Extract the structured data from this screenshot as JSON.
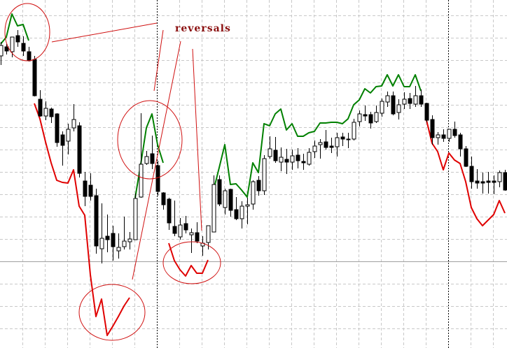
{
  "chart_data": {
    "type": "candlestick",
    "title": "",
    "xlabel": "",
    "ylabel": "",
    "grid": true,
    "colors": {
      "bull_body": "#ffffff",
      "bear_body": "#000000",
      "up_line": "#008000",
      "down_line": "#e00000",
      "annotation": "#d01010",
      "grid": "#c8c8c8"
    },
    "candles_ohlc": [
      [
        420,
        440,
        407,
        435
      ],
      [
        433,
        437,
        422,
        427
      ],
      [
        426,
        447,
        418,
        447
      ],
      [
        449,
        457,
        433,
        440
      ],
      [
        438,
        448,
        420,
        427
      ],
      [
        426,
        433,
        412,
        413
      ],
      [
        415,
        420,
        362,
        363
      ],
      [
        358,
        371,
        333,
        334
      ],
      [
        334,
        355,
        328,
        345
      ],
      [
        344,
        346,
        324,
        333
      ],
      [
        337,
        338,
        290,
        296
      ],
      [
        307,
        312,
        263,
        292
      ],
      [
        298,
        323,
        279,
        315
      ],
      [
        317,
        351,
        312,
        329
      ],
      [
        320,
        325,
        246,
        252
      ],
      [
        241,
        254,
        205,
        219
      ],
      [
        235,
        252,
        213,
        219
      ],
      [
        220,
        230,
        137,
        148
      ],
      [
        144,
        209,
        123,
        159
      ],
      [
        162,
        193,
        139,
        157
      ],
      [
        166,
        177,
        127,
        147
      ],
      [
        141,
        166,
        130,
        146
      ],
      [
        147,
        190,
        143,
        155
      ],
      [
        154,
        168,
        143,
        158
      ],
      [
        157,
        223,
        157,
        216
      ],
      [
        218,
        338,
        217,
        265
      ],
      [
        266,
        284,
        264,
        276
      ],
      [
        280,
        306,
        258,
        266
      ],
      [
        263,
        270,
        220,
        226
      ],
      [
        224,
        225,
        200,
        207
      ],
      [
        215,
        217,
        171,
        181
      ],
      [
        176,
        213,
        162,
        166
      ],
      [
        161,
        188,
        157,
        178
      ],
      [
        180,
        191,
        166,
        171
      ],
      [
        164,
        173,
        138,
        167
      ],
      [
        167,
        182,
        152,
        155
      ],
      [
        148,
        162,
        134,
        152
      ],
      [
        153,
        177,
        143,
        177
      ],
      [
        168,
        249,
        168,
        236
      ],
      [
        243,
        249,
        205,
        208
      ],
      [
        203,
        230,
        193,
        227
      ],
      [
        229,
        230,
        190,
        199
      ],
      [
        200,
        218,
        185,
        187
      ],
      [
        187,
        212,
        173,
        205
      ],
      [
        205,
        217,
        179,
        207
      ],
      [
        208,
        242,
        200,
        240
      ],
      [
        242,
        248,
        220,
        227
      ],
      [
        227,
        278,
        221,
        273
      ],
      [
        276,
        305,
        273,
        287
      ],
      [
        285,
        304,
        267,
        270
      ],
      [
        268,
        289,
        255,
        275
      ],
      [
        272,
        287,
        251,
        268
      ],
      [
        268,
        286,
        257,
        277
      ],
      [
        278,
        288,
        259,
        270
      ],
      [
        269,
        280,
        257,
        267
      ],
      [
        265,
        288,
        263,
        282
      ],
      [
        283,
        299,
        274,
        291
      ],
      [
        293,
        301,
        273,
        296
      ],
      [
        297,
        314,
        286,
        289
      ],
      [
        291,
        303,
        281,
        289
      ],
      [
        290,
        310,
        276,
        303
      ],
      [
        304,
        310,
        291,
        301
      ],
      [
        301,
        310,
        288,
        300
      ],
      [
        301,
        330,
        299,
        325
      ],
      [
        326,
        342,
        319,
        337
      ],
      [
        336,
        349,
        327,
        334
      ],
      [
        336,
        340,
        316,
        324
      ],
      [
        326,
        349,
        324,
        339
      ],
      [
        338,
        359,
        333,
        355
      ],
      [
        354,
        369,
        347,
        363
      ],
      [
        363,
        369,
        335,
        337
      ],
      [
        339,
        358,
        329,
        350
      ],
      [
        351,
        368,
        344,
        358
      ],
      [
        359,
        367,
        344,
        352
      ],
      [
        351,
        377,
        347,
        363
      ],
      [
        363,
        372,
        347,
        351
      ],
      [
        352,
        353,
        325,
        328
      ],
      [
        329,
        335,
        293,
        303
      ],
      [
        303,
        311,
        293,
        307
      ],
      [
        307,
        315,
        297,
        302
      ],
      [
        302,
        315,
        297,
        315
      ],
      [
        315,
        326,
        303,
        306
      ],
      [
        307,
        310,
        276,
        287
      ],
      [
        287,
        291,
        261,
        262
      ],
      [
        262,
        276,
        230,
        240
      ],
      [
        241,
        258,
        230,
        238
      ],
      [
        240,
        253,
        223,
        238
      ],
      [
        241,
        254,
        223,
        239
      ],
      [
        241,
        249,
        222,
        239
      ],
      [
        240,
        256,
        232,
        253
      ],
      [
        253,
        257,
        227,
        228
      ]
    ],
    "trend_segments": [
      {
        "direction": "up",
        "points": [
          [
            0,
            437
          ],
          [
            1,
            447
          ],
          [
            2,
            480
          ],
          [
            3,
            463
          ],
          [
            4,
            465
          ],
          [
            5,
            442
          ]
        ]
      },
      {
        "direction": "down",
        "points": [
          [
            6,
            352
          ],
          [
            7,
            330
          ],
          [
            8,
            297
          ],
          [
            9,
            267
          ],
          [
            10,
            242
          ],
          [
            11,
            239
          ],
          [
            12,
            238
          ],
          [
            13,
            257
          ],
          [
            14,
            205
          ],
          [
            15,
            192
          ],
          [
            16,
            107
          ],
          [
            17,
            47
          ],
          [
            18,
            72
          ],
          [
            19,
            20
          ],
          [
            20,
            33
          ],
          [
            21,
            47
          ],
          [
            22,
            62
          ],
          [
            23,
            74
          ]
        ]
      },
      {
        "direction": "up",
        "points": [
          [
            24,
            217
          ],
          [
            25,
            265
          ],
          [
            26,
            317
          ],
          [
            27,
            337
          ],
          [
            28,
            293
          ],
          [
            29,
            267
          ]
        ]
      },
      {
        "direction": "down",
        "points": [
          [
            30,
            152
          ],
          [
            31,
            127
          ],
          [
            32,
            114
          ],
          [
            33,
            105
          ],
          [
            34,
            120
          ],
          [
            35,
            109
          ],
          [
            36,
            109
          ],
          [
            37,
            128
          ]
        ]
      },
      {
        "direction": "up",
        "points": [
          [
            38,
            228
          ],
          [
            39,
            260
          ],
          [
            40,
            293
          ],
          [
            41,
            236
          ],
          [
            42,
            237
          ],
          [
            43,
            228
          ],
          [
            44,
            218
          ],
          [
            45,
            267
          ],
          [
            46,
            253
          ],
          [
            47,
            323
          ],
          [
            48,
            320
          ],
          [
            49,
            337
          ],
          [
            50,
            344
          ],
          [
            51,
            314
          ],
          [
            52,
            323
          ],
          [
            53,
            305
          ],
          [
            54,
            305
          ],
          [
            55,
            310
          ],
          [
            56,
            312
          ],
          [
            57,
            324
          ],
          [
            58,
            324
          ],
          [
            59,
            325
          ],
          [
            60,
            325
          ],
          [
            61,
            323
          ],
          [
            62,
            330
          ],
          [
            63,
            350
          ],
          [
            64,
            357
          ],
          [
            65,
            373
          ],
          [
            66,
            367
          ],
          [
            67,
            376
          ],
          [
            68,
            377
          ],
          [
            69,
            393
          ],
          [
            70,
            377
          ],
          [
            71,
            393
          ],
          [
            72,
            376
          ],
          [
            73,
            376
          ],
          [
            74,
            393
          ],
          [
            75,
            370
          ]
        ]
      },
      {
        "direction": "down",
        "points": [
          [
            76,
            328
          ],
          [
            77,
            295
          ],
          [
            78,
            283
          ],
          [
            79,
            257
          ],
          [
            80,
            281
          ],
          [
            81,
            271
          ],
          [
            82,
            266
          ],
          [
            83,
            240
          ],
          [
            84,
            203
          ],
          [
            85,
            187
          ],
          [
            86,
            177
          ],
          [
            87,
            185
          ],
          [
            88,
            193
          ],
          [
            89,
            213
          ],
          [
            90,
            195
          ]
        ]
      }
    ],
    "annotation": {
      "label": "reversals"
    }
  }
}
